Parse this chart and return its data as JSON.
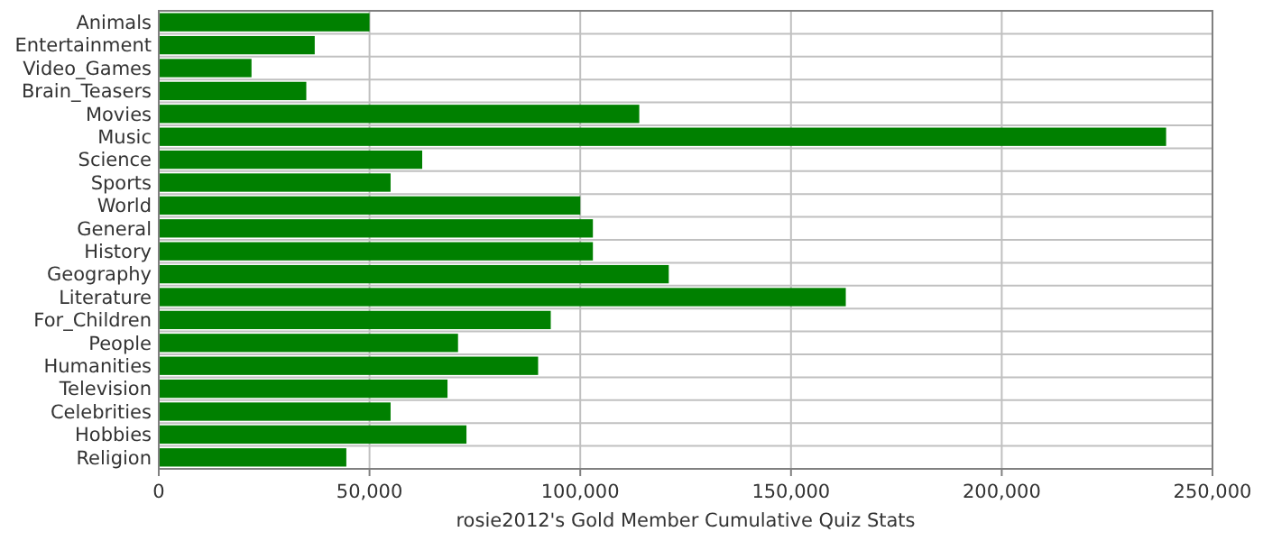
{
  "chart_data": {
    "type": "bar",
    "orientation": "horizontal",
    "xlabel": "rosie2012's Gold Member Cumulative Quiz Stats",
    "categories": [
      "Animals",
      "Entertainment",
      "Video_Games",
      "Brain_Teasers",
      "Movies",
      "Music",
      "Science",
      "Sports",
      "World",
      "General",
      "History",
      "Geography",
      "Literature",
      "For_Children",
      "People",
      "Humanities",
      "Television",
      "Celebrities",
      "Hobbies",
      "Religion"
    ],
    "values": [
      50000,
      37000,
      22000,
      35000,
      114000,
      239000,
      62500,
      55000,
      100000,
      103000,
      103000,
      121000,
      163000,
      93000,
      71000,
      90000,
      68500,
      55000,
      73000,
      44500
    ],
    "color": "#008000",
    "xlim": [
      0,
      250000
    ],
    "xticks": [
      {
        "value": 0,
        "label": "0"
      },
      {
        "value": 50000,
        "label": "50,000"
      },
      {
        "value": 100000,
        "label": "100,000"
      },
      {
        "value": 150000,
        "label": "150,000"
      },
      {
        "value": 200000,
        "label": "200,000"
      },
      {
        "value": 250000,
        "label": "250,000"
      }
    ],
    "grid": true
  }
}
